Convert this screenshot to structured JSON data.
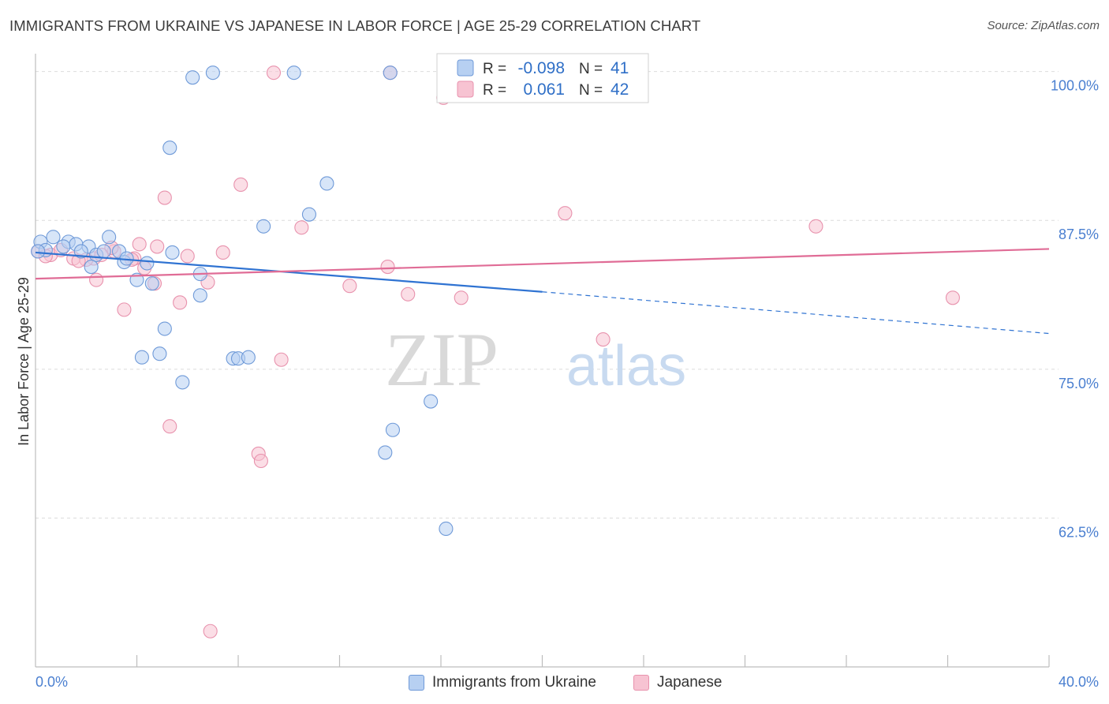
{
  "title": "IMMIGRANTS FROM UKRAINE VS JAPANESE IN LABOR FORCE | AGE 25-29 CORRELATION CHART",
  "source": "Source: ZipAtlas.com",
  "watermark": {
    "zip": "ZIP",
    "atlas": "atlas"
  },
  "colors": {
    "blue_fill": "#b7d0f2",
    "blue_stroke": "#6f9ad8",
    "blue_line": "#2f73d2",
    "pink_fill": "#f7c3d2",
    "pink_stroke": "#e892ad",
    "pink_line": "#e06c96",
    "tick_label": "#4a7fd0",
    "grid": "#dcdcdc"
  },
  "legend_box": {
    "rows": [
      {
        "r_label": "R =",
        "r_value": "-0.098",
        "n_label": "N =",
        "n_value": "41"
      },
      {
        "r_label": "R =",
        "r_value": "0.061",
        "n_label": "N =",
        "n_value": "42"
      }
    ]
  },
  "chart_data": {
    "type": "scatter",
    "title": "IMMIGRANTS FROM UKRAINE VS JAPANESE IN LABOR FORCE | AGE 25-29 CORRELATION CHART",
    "xlabel": "",
    "ylabel": "In Labor Force | Age 25-29",
    "xlim": [
      0,
      40
    ],
    "ylim": [
      50,
      101.5
    ],
    "x_tick_labels": [
      "0.0%",
      "40.0%"
    ],
    "y_ticks": [
      62.5,
      75.0,
      87.5,
      100.0
    ],
    "y_tick_labels": [
      "62.5%",
      "75.0%",
      "87.5%",
      "100.0%"
    ],
    "grid": true,
    "legend_position": "bottom",
    "series": [
      {
        "name": "Immigrants from Ukraine",
        "color": "#6f9ad8",
        "r": -0.098,
        "n": 41,
        "trend": {
          "x0": 0,
          "y0": 84.8,
          "x1": 20,
          "y1": 81.5,
          "dashed_to_x": 40,
          "dashed_to_y": 78.0
        },
        "points": [
          [
            0.2,
            85.7
          ],
          [
            0.4,
            85.0
          ],
          [
            0.7,
            86.1
          ],
          [
            1.3,
            85.7
          ],
          [
            1.6,
            85.5
          ],
          [
            1.1,
            85.3
          ],
          [
            2.1,
            85.3
          ],
          [
            2.4,
            84.6
          ],
          [
            2.2,
            83.6
          ],
          [
            2.9,
            86.1
          ],
          [
            2.7,
            84.9
          ],
          [
            3.3,
            84.9
          ],
          [
            3.5,
            84.0
          ],
          [
            3.6,
            84.3
          ],
          [
            4.0,
            82.5
          ],
          [
            4.4,
            83.9
          ],
          [
            4.6,
            82.2
          ],
          [
            4.2,
            76.0
          ],
          [
            5.1,
            78.4
          ],
          [
            4.9,
            76.3
          ],
          [
            5.4,
            84.8
          ],
          [
            5.8,
            73.9
          ],
          [
            6.5,
            81.2
          ],
          [
            6.5,
            83.0
          ],
          [
            5.3,
            93.6
          ],
          [
            6.2,
            99.5
          ],
          [
            7.0,
            99.9
          ],
          [
            7.8,
            75.9
          ],
          [
            8.0,
            75.9
          ],
          [
            8.4,
            76.0
          ],
          [
            9.0,
            87.0
          ],
          [
            10.2,
            99.9
          ],
          [
            10.8,
            88.0
          ],
          [
            11.5,
            90.6
          ],
          [
            14.0,
            99.9
          ],
          [
            13.8,
            68.0
          ],
          [
            14.1,
            69.9
          ],
          [
            15.6,
            72.3
          ],
          [
            16.2,
            61.6
          ],
          [
            0.1,
            84.9
          ],
          [
            1.8,
            84.9
          ]
        ]
      },
      {
        "name": "Japanese",
        "color": "#e892ad",
        "r": 0.061,
        "n": 42,
        "trend": {
          "x0": 0,
          "y0": 82.6,
          "x1": 40,
          "y1": 85.1
        },
        "points": [
          [
            0.1,
            84.9
          ],
          [
            0.6,
            84.6
          ],
          [
            1.0,
            85.0
          ],
          [
            1.5,
            84.3
          ],
          [
            2.3,
            84.3
          ],
          [
            2.0,
            84.2
          ],
          [
            2.4,
            82.5
          ],
          [
            3.1,
            84.9
          ],
          [
            3.0,
            85.2
          ],
          [
            3.5,
            80.0
          ],
          [
            3.9,
            84.3
          ],
          [
            4.1,
            85.5
          ],
          [
            4.3,
            83.5
          ],
          [
            4.7,
            82.2
          ],
          [
            4.8,
            85.3
          ],
          [
            5.1,
            89.4
          ],
          [
            5.3,
            70.2
          ],
          [
            5.7,
            80.6
          ],
          [
            6.0,
            84.5
          ],
          [
            6.8,
            82.3
          ],
          [
            7.4,
            84.8
          ],
          [
            8.1,
            90.5
          ],
          [
            8.8,
            67.9
          ],
          [
            8.9,
            67.3
          ],
          [
            9.4,
            99.9
          ],
          [
            9.7,
            75.8
          ],
          [
            10.5,
            86.9
          ],
          [
            12.4,
            82.0
          ],
          [
            14.0,
            99.9
          ],
          [
            13.9,
            83.6
          ],
          [
            14.7,
            81.3
          ],
          [
            16.1,
            97.8
          ],
          [
            16.8,
            81.0
          ],
          [
            20.9,
            88.1
          ],
          [
            22.4,
            77.5
          ],
          [
            30.8,
            87.0
          ],
          [
            36.2,
            81.0
          ],
          [
            6.9,
            53.0
          ],
          [
            2.6,
            84.6
          ],
          [
            1.7,
            84.1
          ],
          [
            0.4,
            84.5
          ],
          [
            3.8,
            84.2
          ]
        ]
      }
    ]
  }
}
